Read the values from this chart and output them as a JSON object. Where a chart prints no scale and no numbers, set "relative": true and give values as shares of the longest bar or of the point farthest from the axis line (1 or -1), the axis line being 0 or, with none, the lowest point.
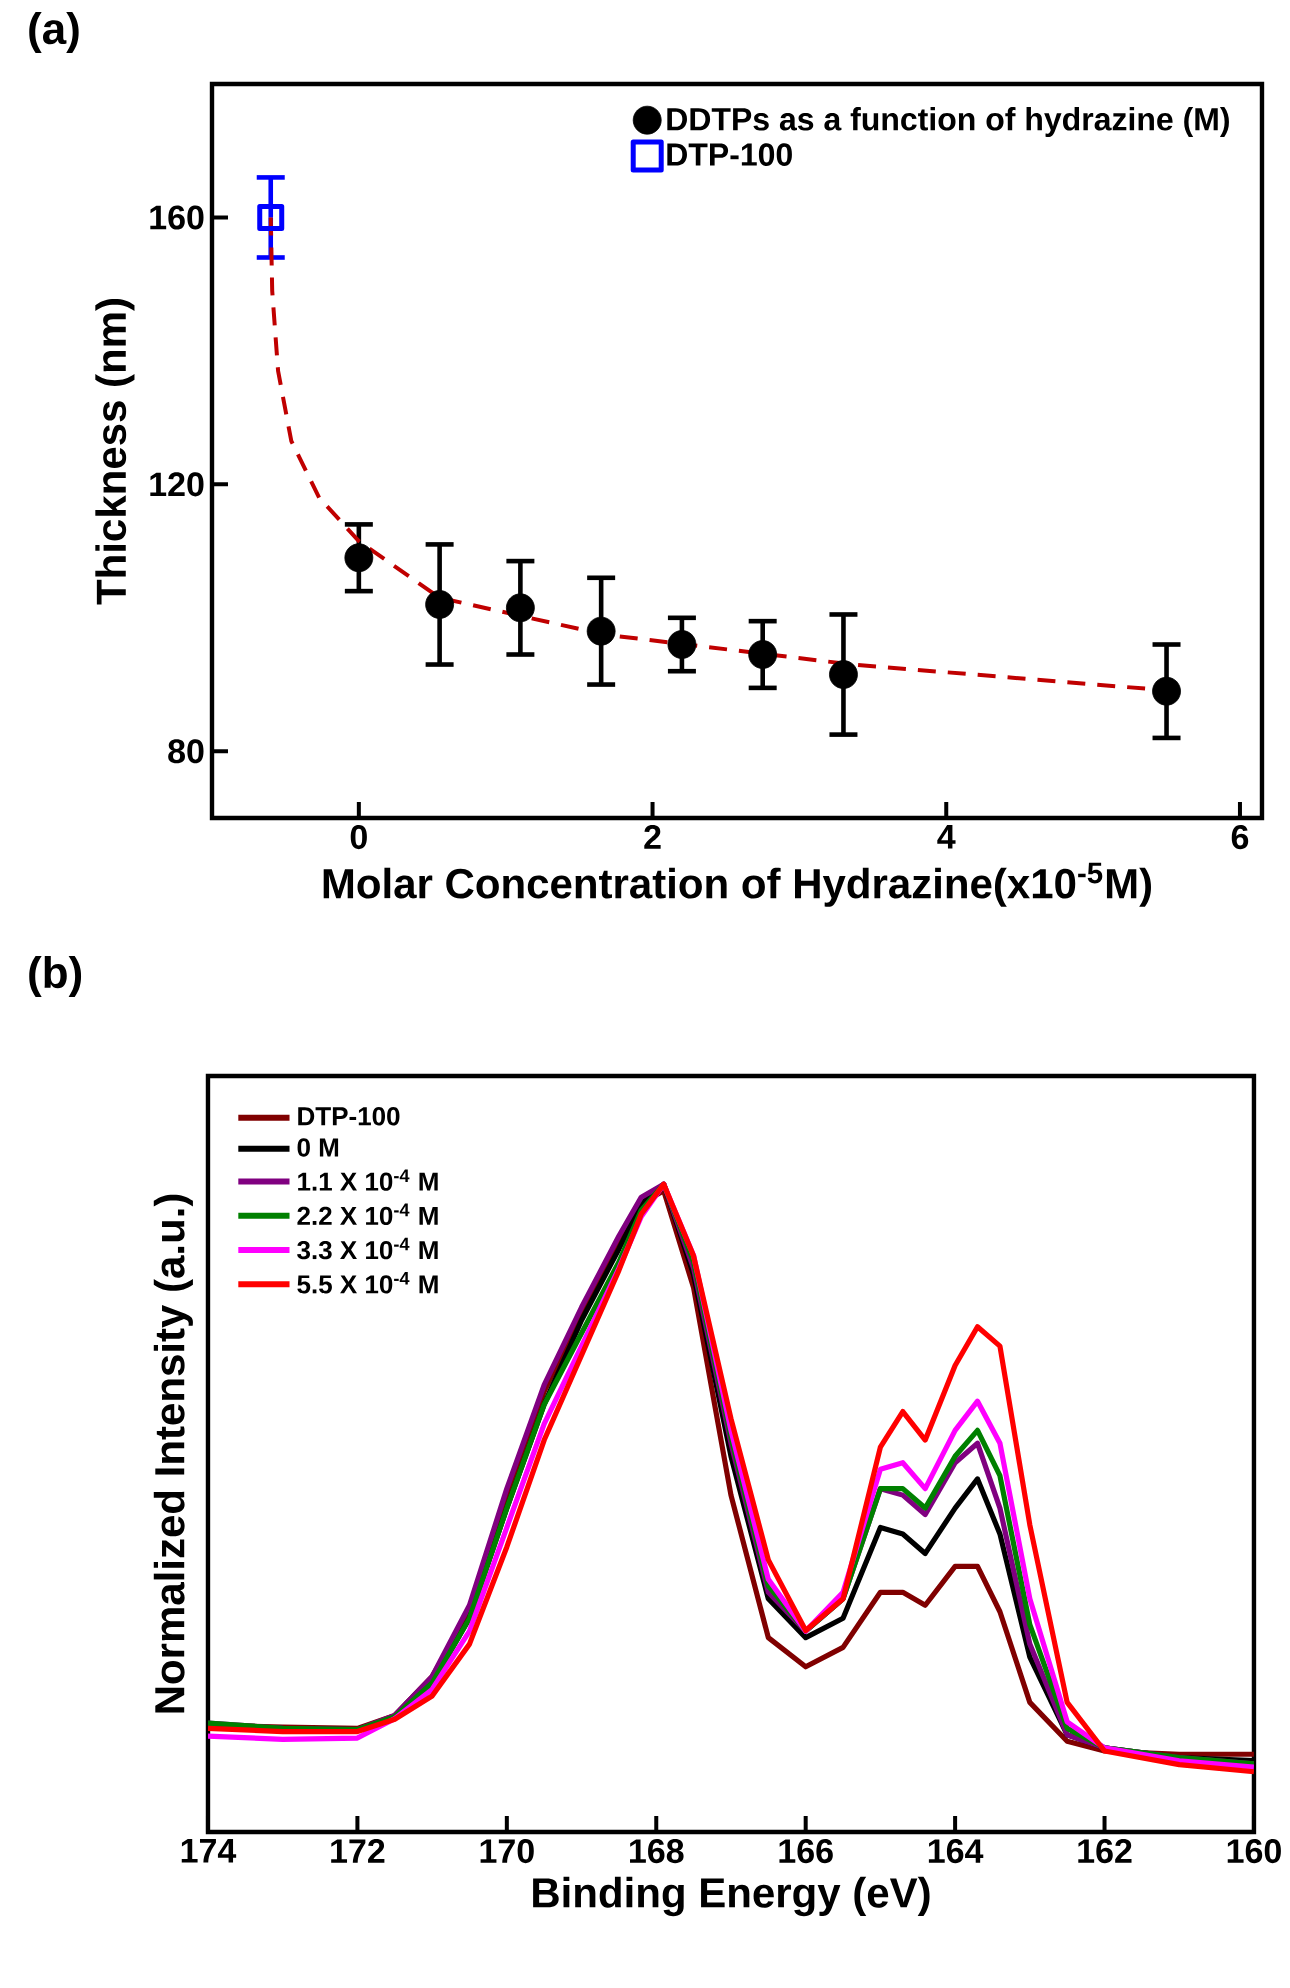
{
  "chart_data": [
    {
      "type": "scatter",
      "title": "(a)",
      "xlabel": "Molar Concentration of Hydrazine(x10$^{-5}$M)",
      "ylabel": "Thickness (nm)",
      "xlim": [
        -1,
        6.15
      ],
      "xticks": [
        0,
        2,
        4,
        6
      ],
      "ylim": [
        70,
        180
      ],
      "yticks": [
        80,
        120,
        160
      ],
      "legend": "top right",
      "series": [
        {
          "name": "DDTPs as a function of hydrazine (M)",
          "color": "#000000",
          "marker": "circle",
          "x": [
            0,
            0.55,
            1.1,
            1.65,
            2.2,
            2.75,
            3.3,
            5.5
          ],
          "values": [
            109,
            102,
            101.5,
            98,
            96,
            94.5,
            91.5,
            89
          ],
          "errors": [
            5,
            9,
            7,
            8,
            4,
            5,
            9,
            7
          ]
        },
        {
          "name": "DTP-100",
          "color": "#0000ff",
          "marker": "square",
          "x": [
            -0.6
          ],
          "values": [
            160
          ],
          "errors": [
            6
          ]
        },
        {
          "type": "line",
          "color": "#c00000",
          "line_style": "dashed",
          "marker": "none",
          "x": [
            -0.6,
            -0.59,
            -0.55,
            -0.46,
            -0.27,
            0,
            0.55,
            1.67,
            3.36,
            5.57
          ],
          "values": [
            160,
            149,
            137,
            126.5,
            118,
            111.5,
            103,
            97.5,
            93,
            89
          ]
        }
      ]
    },
    {
      "type": "line",
      "title": "(b)",
      "xlabel": "Binding Energy (eV)",
      "ylabel": "Normalized Intensity (a.u.)",
      "relative": true,
      "xlim": [
        174,
        160
      ],
      "xticks": [
        174,
        172,
        170,
        168,
        166,
        164,
        162,
        160
      ],
      "legend": "top left",
      "x": [
        174,
        173,
        172,
        171.5,
        171,
        170.5,
        170,
        169.5,
        169,
        168.5,
        168.2,
        167.9,
        167.5,
        167,
        166.5,
        166,
        165.5,
        165,
        164.7,
        164.4,
        164,
        163.7,
        163.4,
        163,
        162.5,
        162,
        161,
        160
      ],
      "series": [
        {
          "name": "DTP-100",
          "color": "#800000",
          "values": [
            0.165,
            0.162,
            0.16,
            0.18,
            0.24,
            0.34,
            0.52,
            0.68,
            0.8,
            0.91,
            0.97,
            0.99,
            0.84,
            0.52,
            0.3,
            0.255,
            0.285,
            0.37,
            0.37,
            0.35,
            0.41,
            0.41,
            0.34,
            0.2,
            0.14,
            0.125,
            0.12,
            0.12
          ]
        },
        {
          "name": "0 M",
          "color": "#000000",
          "values": [
            0.165,
            0.16,
            0.158,
            0.178,
            0.23,
            0.33,
            0.5,
            0.66,
            0.79,
            0.9,
            0.97,
            1.0,
            0.86,
            0.58,
            0.36,
            0.3,
            0.33,
            0.47,
            0.46,
            0.43,
            0.5,
            0.545,
            0.46,
            0.27,
            0.15,
            0.13,
            0.115,
            0.11
          ]
        },
        {
          "name": "1.1 X 10$^{-4}$ M",
          "color": "#800080",
          "values": [
            0.168,
            0.16,
            0.158,
            0.18,
            0.24,
            0.35,
            0.53,
            0.69,
            0.81,
            0.92,
            0.98,
            1.0,
            0.87,
            0.6,
            0.37,
            0.31,
            0.36,
            0.53,
            0.52,
            0.49,
            0.57,
            0.6,
            0.5,
            0.29,
            0.15,
            0.13,
            0.115,
            0.105
          ]
        },
        {
          "name": "2.2 X 10$^{-4}$ M",
          "color": "#008000",
          "values": [
            0.168,
            0.16,
            0.158,
            0.178,
            0.23,
            0.33,
            0.5,
            0.66,
            0.77,
            0.88,
            0.96,
            1.0,
            0.88,
            0.61,
            0.38,
            0.31,
            0.36,
            0.53,
            0.53,
            0.5,
            0.58,
            0.62,
            0.55,
            0.32,
            0.16,
            0.13,
            0.115,
            0.105
          ]
        },
        {
          "name": "3.3 X 10$^{-4}$ M",
          "color": "#ff00ff",
          "values": [
            0.148,
            0.143,
            0.145,
            0.175,
            0.22,
            0.31,
            0.47,
            0.63,
            0.75,
            0.87,
            0.95,
            1.0,
            0.89,
            0.62,
            0.39,
            0.31,
            0.37,
            0.56,
            0.57,
            0.53,
            0.62,
            0.665,
            0.6,
            0.36,
            0.17,
            0.13,
            0.11,
            0.1
          ]
        },
        {
          "name": "5.5 X 10$^{-4}$ M",
          "color": "#ff0000",
          "values": [
            0.16,
            0.155,
            0.155,
            0.174,
            0.21,
            0.29,
            0.44,
            0.605,
            0.736,
            0.867,
            0.954,
            1.0,
            0.889,
            0.638,
            0.42,
            0.311,
            0.36,
            0.594,
            0.649,
            0.605,
            0.72,
            0.78,
            0.75,
            0.474,
            0.2,
            0.125,
            0.104,
            0.093
          ]
        }
      ]
    }
  ]
}
